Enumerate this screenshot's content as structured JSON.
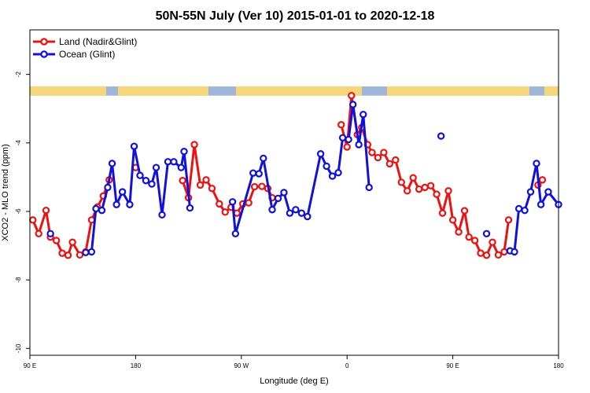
{
  "chart_data": {
    "type": "line",
    "title": "50N-55N July (Ver 10)   2015-01-01 to 2020-12-18",
    "xlabel": "Longitude (deg E)",
    "ylabel": "XCO2 - MLO trend (ppm)",
    "xlim": [
      90,
      450
    ],
    "ylim": [
      -10.2,
      -0.7
    ],
    "x_ticks": [
      {
        "value": 90,
        "label": "90 E"
      },
      {
        "value": 162,
        "label": "180"
      },
      {
        "value": 234,
        "label": "90 W"
      },
      {
        "value": 306,
        "label": "0"
      },
      {
        "value": 378,
        "label": "90 E"
      },
      {
        "value": 450,
        "label": "180"
      }
    ],
    "y_ticks": [
      {
        "value": -2,
        "label": "-2"
      },
      {
        "value": -4,
        "label": "-4"
      },
      {
        "value": -6,
        "label": "-6"
      },
      {
        "value": -8,
        "label": "-8"
      },
      {
        "value": -10,
        "label": "-10"
      }
    ],
    "grid": false,
    "legend_position": "top-left",
    "land_band": {
      "y_top": -2.35,
      "y_bottom": -2.62,
      "ocean_color": "#9fb6d8",
      "land_color": "#f5d67a"
    },
    "series": [
      {
        "name": "Land (Nadir&Glint)",
        "color": "#ee1111",
        "points": [
          [
            92,
            -6.25
          ],
          [
            96,
            -6.65
          ],
          [
            101,
            -5.97
          ],
          [
            104,
            -6.75
          ],
          [
            108,
            -6.85
          ],
          [
            112,
            -7.22
          ],
          [
            116,
            -7.28
          ],
          [
            119,
            -6.9
          ],
          [
            124,
            -7.27
          ],
          [
            128,
            -7.18
          ],
          [
            132,
            -6.25
          ],
          [
            136,
            -5.87
          ],
          [
            140,
            -5.55
          ],
          [
            144,
            -5.08
          ],
          [
            162,
            -4.72
          ],
          [
            194,
            -5.1
          ],
          [
            198,
            -5.6
          ],
          [
            202,
            -4.05
          ],
          [
            206,
            -5.23
          ],
          [
            210,
            -5.08
          ],
          [
            214,
            -5.33
          ],
          [
            219,
            -5.78
          ],
          [
            223,
            -6.02
          ],
          [
            227,
            -5.88
          ],
          [
            231,
            -6.05
          ],
          [
            235,
            -5.78
          ],
          [
            239,
            -5.75
          ],
          [
            243,
            -5.28
          ],
          [
            248,
            -5.27
          ],
          [
            252,
            -5.33
          ],
          [
            255,
            -5.6
          ],
          [
            302,
            -3.47
          ],
          [
            306,
            -4.12
          ],
          [
            309,
            -2.62
          ],
          [
            313,
            -3.76
          ],
          [
            316,
            -3.55
          ],
          [
            320,
            -4.05
          ],
          [
            323,
            -4.28
          ],
          [
            327,
            -4.43
          ],
          [
            331,
            -4.28
          ],
          [
            335,
            -4.61
          ],
          [
            339,
            -4.5
          ],
          [
            343,
            -5.15
          ],
          [
            347,
            -5.4
          ],
          [
            351,
            -5.02
          ],
          [
            355,
            -5.35
          ],
          [
            359,
            -5.3
          ],
          [
            363,
            -5.25
          ],
          [
            367,
            -5.5
          ],
          [
            371,
            -6.05
          ],
          [
            375,
            -5.4
          ],
          [
            378,
            -6.25
          ],
          [
            382,
            -6.6
          ],
          [
            386,
            -5.98
          ],
          [
            389,
            -6.75
          ],
          [
            393,
            -6.85
          ],
          [
            397,
            -7.22
          ],
          [
            401,
            -7.28
          ],
          [
            405,
            -6.9
          ],
          [
            409,
            -7.27
          ],
          [
            413,
            -7.18
          ],
          [
            416,
            -6.25
          ],
          [
            436,
            -5.23
          ],
          [
            439,
            -5.08
          ]
        ]
      },
      {
        "name": "Ocean (Glint)",
        "color": "#1111dd",
        "points": [
          [
            104,
            -6.65
          ],
          [
            128,
            -7.2
          ],
          [
            132,
            -7.18
          ],
          [
            135,
            -5.92
          ],
          [
            139,
            -5.97
          ],
          [
            143,
            -5.3
          ],
          [
            146,
            -4.6
          ],
          [
            149,
            -5.8
          ],
          [
            153,
            -5.43
          ],
          [
            158,
            -5.8
          ],
          [
            161,
            -4.1
          ],
          [
            165,
            -4.95
          ],
          [
            169,
            -5.1
          ],
          [
            173,
            -5.2
          ],
          [
            176,
            -4.72
          ],
          [
            180,
            -6.1
          ],
          [
            184,
            -4.55
          ],
          [
            188,
            -4.55
          ],
          [
            193,
            -4.72
          ],
          [
            195,
            -4.25
          ],
          [
            199,
            -5.9
          ],
          [
            228,
            -5.72
          ],
          [
            230,
            -6.65
          ],
          [
            242,
            -4.88
          ],
          [
            246,
            -4.9
          ],
          [
            249,
            -4.45
          ],
          [
            255,
            -5.95
          ],
          [
            259,
            -5.62
          ],
          [
            263,
            -5.45
          ],
          [
            267,
            -6.05
          ],
          [
            271,
            -5.95
          ],
          [
            275,
            -6.05
          ],
          [
            279,
            -6.15
          ],
          [
            288,
            -4.32
          ],
          [
            292,
            -4.68
          ],
          [
            296,
            -4.97
          ],
          [
            300,
            -4.87
          ],
          [
            303,
            -3.85
          ],
          [
            307,
            -3.9
          ],
          [
            310,
            -2.88
          ],
          [
            314,
            -4.05
          ],
          [
            317,
            -3.17
          ],
          [
            321,
            -5.3
          ],
          [
            370,
            -3.8
          ],
          [
            401,
            -6.65
          ],
          [
            417,
            -7.15
          ],
          [
            420,
            -7.18
          ],
          [
            423,
            -5.92
          ],
          [
            427,
            -5.97
          ],
          [
            431,
            -5.43
          ],
          [
            435,
            -4.6
          ],
          [
            438,
            -5.8
          ],
          [
            443,
            -5.43
          ],
          [
            450,
            -5.8
          ]
        ]
      }
    ]
  }
}
